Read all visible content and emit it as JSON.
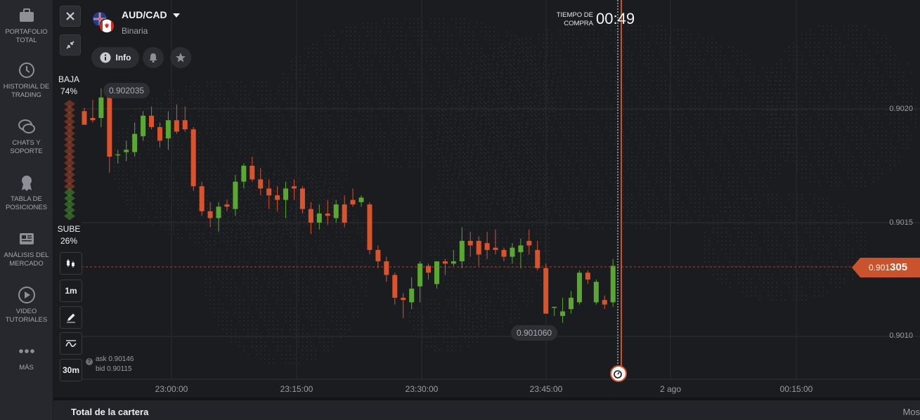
{
  "sidebar": {
    "items": [
      {
        "label": "PORTAFOLIO TOTAL",
        "icon": "briefcase-icon"
      },
      {
        "label": "HISTORIAL DE TRADING",
        "icon": "history-icon"
      },
      {
        "label": "CHATS Y SOPORTE",
        "icon": "chat-icon"
      },
      {
        "label": "TABLA DE POSICIONES",
        "icon": "medal-icon"
      },
      {
        "label": "ANÁLISIS DEL MERCADO",
        "icon": "newspaper-icon"
      },
      {
        "label": "VIDEO TUTORIALES",
        "icon": "play-icon"
      },
      {
        "label": "MÁS",
        "icon": "more-dots-icon"
      }
    ]
  },
  "asset": {
    "pair": "AUD/CAD",
    "type": "Binaria",
    "info_label": "Info"
  },
  "sentiment": {
    "down_label": "BAJA",
    "down_pct": "74%",
    "up_label": "SUBE",
    "up_pct": "26%",
    "down_fraction": 0.74,
    "up_fraction": 0.26
  },
  "tools": {
    "timeframe": "1m",
    "interval": "30m"
  },
  "quote": {
    "ask_label": "ask",
    "ask": "0.90146",
    "bid_label": "bid",
    "bid": "0.90115"
  },
  "timer": {
    "label": "TIEMPO DE COMPRA",
    "value": "00:49"
  },
  "price": {
    "current_prefix": "0.901",
    "current_suffix": "305",
    "high_marker": "0.902035",
    "low_marker": "0.901060"
  },
  "axes": {
    "y_ticks": [
      "0.9020",
      "0.9015",
      "0.9010"
    ],
    "x_ticks": [
      "23:00:00",
      "23:15:00",
      "23:30:00",
      "23:45:00",
      "2 ago",
      "00:15:00"
    ]
  },
  "bottom": {
    "title": "Total de la cartera",
    "more": "Mos"
  },
  "colors": {
    "up": "#5aa832",
    "down": "#d9532d",
    "accent": "#c8532c"
  }
}
